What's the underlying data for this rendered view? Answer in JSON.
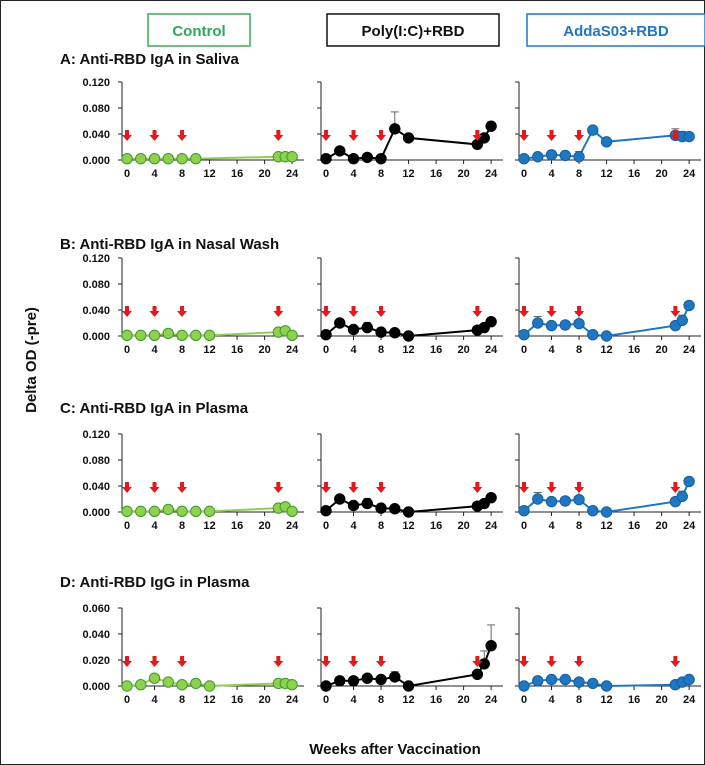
{
  "chart_data": {
    "type": "line",
    "groups": [
      {
        "name": "Control",
        "color": "#8fd14f",
        "edge": "#3a9a2a",
        "label_color": "#2aa85a"
      },
      {
        "name": "Poly(I:C)+RBD",
        "color": "#000000",
        "edge": "#000000",
        "label_color": "#111111"
      },
      {
        "name": "AddaS03+RBD",
        "color": "#1f77c2",
        "edge": "#12609f",
        "label_color": "#1f77c2"
      }
    ],
    "xlabel": "Weeks after  Vaccination",
    "ylabel": "Delta OD (-pre)",
    "xticks": [
      "0",
      "4",
      "8",
      "12",
      "16",
      "20",
      "24"
    ],
    "xlim": [
      0,
      25
    ],
    "arrow_color": "#e01b1b",
    "panels": [
      {
        "title": "A: Anti-RBD IgA in Saliva",
        "ylim": [
          0,
          0.12
        ],
        "yticks": [
          "0.000",
          "0.040",
          "0.080",
          "0.120"
        ],
        "series": [
          {
            "x": [
              0,
              2,
              4,
              6,
              8,
              10,
              22,
              23,
              24
            ],
            "y": [
              0.002,
              0.002,
              0.002,
              0.002,
              0.002,
              0.002,
              0.005,
              0.005,
              0.005
            ],
            "err": [
              0,
              0,
              0,
              0,
              0,
              0,
              0,
              0,
              0
            ]
          },
          {
            "x": [
              0,
              2,
              4,
              6,
              8,
              10,
              12,
              22,
              23,
              24
            ],
            "y": [
              0.002,
              0.014,
              0.002,
              0.004,
              0.002,
              0.048,
              0.034,
              0.024,
              0.034,
              0.052
            ],
            "err": [
              0,
              0.004,
              0,
              0,
              0,
              0.026,
              0.004,
              0,
              0.004,
              0.006
            ]
          },
          {
            "x": [
              0,
              2,
              4,
              6,
              8,
              10,
              12,
              22,
              23,
              24
            ],
            "y": [
              0.002,
              0.005,
              0.008,
              0.007,
              0.005,
              0.046,
              0.028,
              0.038,
              0.036,
              0.036
            ],
            "err": [
              0,
              0,
              0.006,
              0,
              0.008,
              0,
              0.004,
              0.01,
              0.008,
              0.006
            ]
          }
        ],
        "arrows": [
          [
            0,
            4,
            8,
            22
          ],
          [
            0,
            4,
            8,
            22
          ],
          [
            0,
            4,
            8,
            22
          ]
        ]
      },
      {
        "title": "B: Anti-RBD IgA in Nasal Wash",
        "ylim": [
          0,
          0.12
        ],
        "yticks": [
          "0.000",
          "0.040",
          "0.080",
          "0.120"
        ],
        "series": [
          {
            "x": [
              0,
              2,
              4,
              6,
              8,
              10,
              12,
              22,
              23,
              24
            ],
            "y": [
              0.001,
              0.001,
              0.001,
              0.004,
              0.001,
              0.001,
              0.001,
              0.006,
              0.008,
              0.001
            ],
            "err": [
              0,
              0,
              0,
              0,
              0,
              0,
              0,
              0,
              0,
              0
            ]
          },
          {
            "x": [
              0,
              2,
              4,
              6,
              8,
              10,
              12,
              22,
              23,
              24
            ],
            "y": [
              0.002,
              0.02,
              0.01,
              0.013,
              0.006,
              0.005,
              0.0,
              0.009,
              0.013,
              0.022
            ],
            "err": [
              0,
              0.005,
              0,
              0.008,
              0,
              0,
              0,
              0,
              0,
              0
            ]
          },
          {
            "x": [
              0,
              2,
              4,
              6,
              8,
              10,
              12,
              22,
              23,
              24
            ],
            "y": [
              0.002,
              0.02,
              0.016,
              0.017,
              0.019,
              0.002,
              0.0,
              0.016,
              0.024,
              0.047
            ],
            "err": [
              0,
              0.01,
              0.006,
              0.006,
              0.016,
              0,
              0,
              0.006,
              0.008,
              0
            ]
          }
        ],
        "arrows": [
          [
            0,
            4,
            8,
            22
          ],
          [
            0,
            4,
            8,
            22
          ],
          [
            0,
            4,
            8,
            22
          ]
        ]
      },
      {
        "title": "C: Anti-RBD IgA in Plasma",
        "ylim": [
          0,
          0.12
        ],
        "yticks": [
          "0.000",
          "0.040",
          "0.080",
          "0.120"
        ],
        "series": [
          {
            "x": [
              0,
              2,
              4,
              6,
              8,
              10,
              12,
              22,
              23,
              24
            ],
            "y": [
              0.001,
              0.001,
              0.001,
              0.004,
              0.001,
              0.001,
              0.001,
              0.006,
              0.008,
              0.001
            ],
            "err": [
              0,
              0,
              0,
              0,
              0,
              0,
              0,
              0,
              0,
              0
            ]
          },
          {
            "x": [
              0,
              2,
              4,
              6,
              8,
              10,
              12,
              22,
              23,
              24
            ],
            "y": [
              0.002,
              0.02,
              0.01,
              0.013,
              0.006,
              0.005,
              0.0,
              0.009,
              0.013,
              0.022
            ],
            "err": [
              0,
              0.005,
              0,
              0.008,
              0,
              0,
              0,
              0,
              0,
              0
            ]
          },
          {
            "x": [
              0,
              2,
              4,
              6,
              8,
              10,
              12,
              22,
              23,
              24
            ],
            "y": [
              0.002,
              0.02,
              0.016,
              0.017,
              0.019,
              0.002,
              0.0,
              0.016,
              0.024,
              0.047
            ],
            "err": [
              0,
              0.01,
              0.006,
              0.006,
              0.016,
              0,
              0,
              0.006,
              0.008,
              0
            ]
          }
        ],
        "arrows": [
          [
            0,
            4,
            8,
            22
          ],
          [
            0,
            4,
            8,
            22
          ],
          [
            0,
            4,
            8,
            22
          ]
        ]
      },
      {
        "title": "D: Anti-RBD IgG in Plasma",
        "ylim": [
          0,
          0.06
        ],
        "yticks": [
          "0.000",
          "0.020",
          "0.040",
          "0.060"
        ],
        "series": [
          {
            "x": [
              0,
              2,
              4,
              6,
              8,
              10,
              12,
              22,
              23,
              24
            ],
            "y": [
              0.0,
              0.001,
              0.006,
              0.003,
              0.001,
              0.002,
              0.0,
              0.002,
              0.002,
              0.001
            ],
            "err": [
              0,
              0,
              0,
              0,
              0,
              0,
              0,
              0,
              0,
              0
            ]
          },
          {
            "x": [
              0,
              2,
              4,
              6,
              8,
              10,
              12,
              22,
              23,
              24
            ],
            "y": [
              0.0,
              0.004,
              0.004,
              0.006,
              0.005,
              0.007,
              0.0,
              0.009,
              0.017,
              0.031
            ],
            "err": [
              0,
              0,
              0,
              0.002,
              0,
              0.004,
              0,
              0,
              0.01,
              0.016
            ]
          },
          {
            "x": [
              0,
              2,
              4,
              6,
              8,
              10,
              12,
              22,
              23,
              24
            ],
            "y": [
              0.0,
              0.004,
              0.005,
              0.005,
              0.003,
              0.002,
              0.0,
              0.001,
              0.003,
              0.005
            ],
            "err": [
              0,
              0,
              0.002,
              0.002,
              0,
              0,
              0,
              0,
              0,
              0
            ]
          }
        ],
        "arrows": [
          [
            0,
            4,
            8,
            22
          ],
          [
            0,
            4,
            8,
            22
          ],
          [
            0,
            4,
            8,
            22
          ]
        ]
      }
    ]
  }
}
